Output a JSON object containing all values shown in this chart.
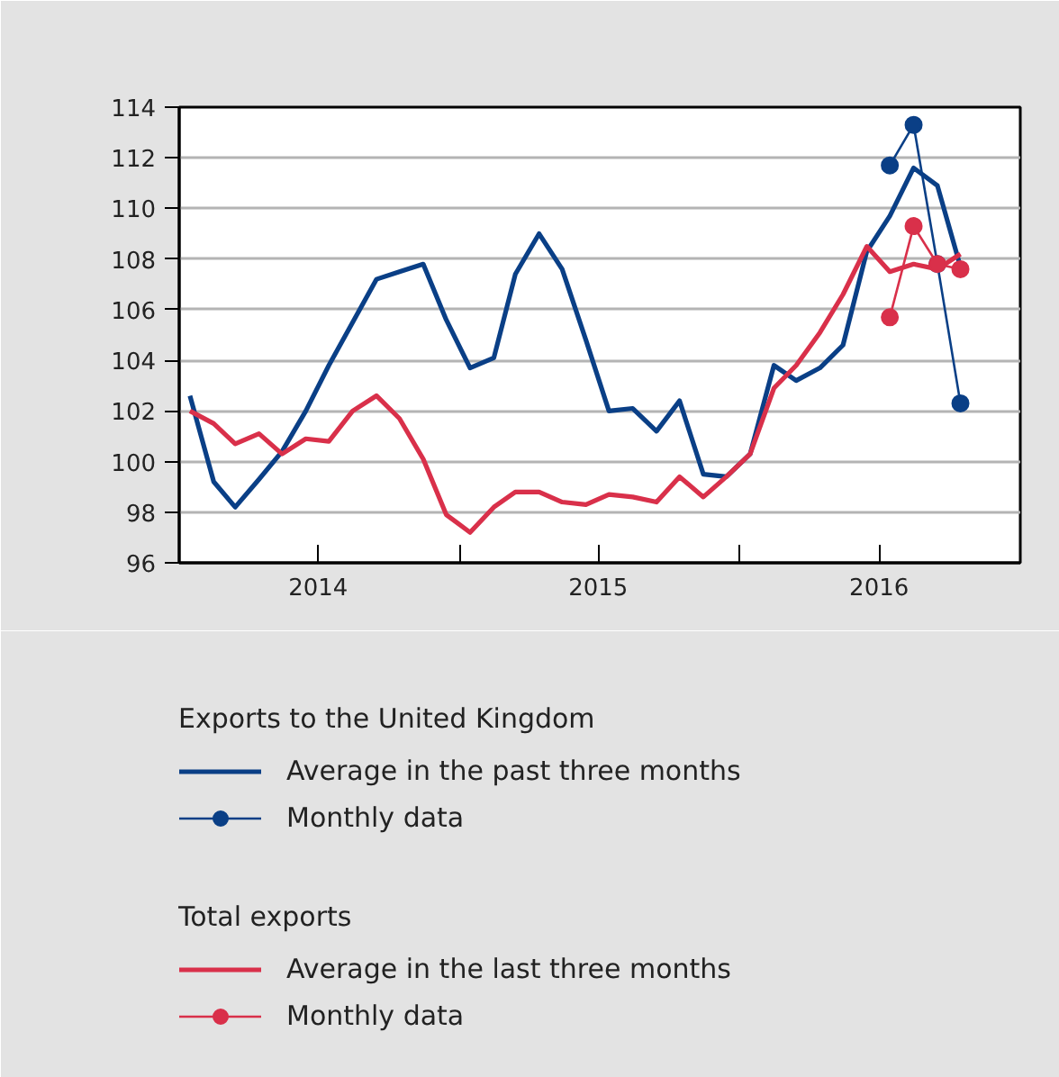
{
  "chart_data": {
    "type": "line",
    "x": [
      "2014-01-15",
      "2014-02-15",
      "2014-03-15",
      "2014-04-15",
      "2014-05-15",
      "2014-06-15",
      "2014-07-15",
      "2014-08-15",
      "2014-09-15",
      "2014-10-15",
      "2014-11-15",
      "2014-12-15",
      "2015-01-15",
      "2015-02-15",
      "2015-03-15",
      "2015-04-15",
      "2015-05-15",
      "2015-06-15",
      "2015-07-15",
      "2015-08-15",
      "2015-09-15",
      "2015-10-15",
      "2015-11-15",
      "2015-12-15",
      "2016-01-15",
      "2016-02-15",
      "2016-03-15",
      "2016-04-15",
      "2016-05-15",
      "2016-06-15",
      "2016-07-15",
      "2016-08-15",
      "2016-09-15",
      "2016-10-15"
    ],
    "series": [
      {
        "name": "Average in the past three months",
        "color": "#0a3f86",
        "values": [
          102.6,
          99.2,
          98.2,
          99.3,
          100.4,
          102.0,
          103.8,
          105.5,
          107.2,
          107.5,
          107.8,
          105.6,
          103.7,
          104.1,
          107.4,
          109.0,
          107.6,
          104.8,
          102.0,
          102.1,
          101.2,
          102.4,
          99.5,
          99.4,
          100.3,
          103.8,
          103.2,
          103.7,
          104.6,
          108.3,
          109.7,
          111.6,
          110.9,
          107.7
        ]
      },
      {
        "name": "Monthly data",
        "color": "#0a3f86",
        "marker": "circle",
        "x": [
          "2016-07-15",
          "2016-08-15",
          "2016-09-15",
          "2016-10-15"
        ],
        "values": [
          111.7,
          113.3,
          107.8,
          102.3
        ]
      },
      {
        "name": "Average in the last three months",
        "color": "#d9304a",
        "values": [
          102.0,
          101.5,
          100.7,
          101.1,
          100.3,
          100.9,
          100.8,
          102.0,
          102.6,
          101.7,
          100.1,
          97.9,
          97.2,
          98.2,
          98.8,
          98.8,
          98.4,
          98.3,
          98.7,
          98.6,
          98.4,
          99.4,
          98.6,
          99.4,
          100.3,
          102.9,
          103.8,
          105.1,
          106.6,
          108.5,
          107.5,
          107.8,
          107.6,
          108.2
        ]
      },
      {
        "name": "Monthly data",
        "color": "#d9304a",
        "marker": "circle",
        "x": [
          "2016-07-15",
          "2016-08-15",
          "2016-09-15",
          "2016-10-15"
        ],
        "values": [
          105.7,
          109.3,
          107.8,
          107.6
        ]
      }
    ],
    "annotations": [
      "Exports to the United Kingdom",
      "Total exports"
    ],
    "xlim": [
      "2014-01-01",
      "2017-01-01"
    ],
    "xticks": [
      {
        "value": "2014-07-01",
        "label": "2014"
      },
      {
        "value": "2015-01-01",
        "label": null
      },
      {
        "value": "2015-07-01",
        "label": "2015"
      },
      {
        "value": "2016-01-01",
        "label": null
      },
      {
        "value": "2016-07-01",
        "label": "2016"
      }
    ],
    "ylim": [
      96,
      114
    ],
    "yticks": [
      96,
      98,
      100,
      102,
      104,
      106,
      108,
      110,
      112,
      114
    ],
    "grid": "y",
    "legend": "bottom"
  }
}
